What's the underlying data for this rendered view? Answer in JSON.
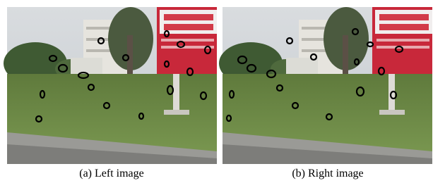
{
  "figure": {
    "panels": [
      {
        "caption": "(a) Left image"
      },
      {
        "caption": "(b) Right image"
      }
    ]
  }
}
